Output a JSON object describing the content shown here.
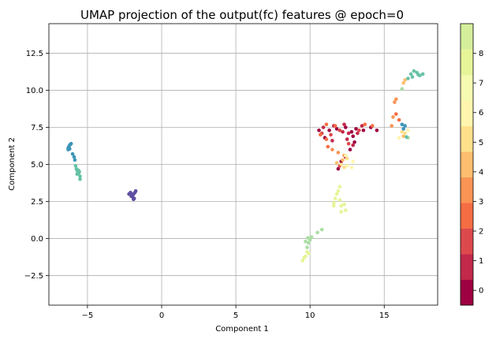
{
  "chart_data": {
    "type": "scatter",
    "title": "UMAP projection of the output(fc) features @ epoch=0",
    "xlabel": "Component 1",
    "ylabel": "Component 2",
    "xlim": [
      -7.6,
      18.6
    ],
    "ylim": [
      -4.5,
      14.5
    ],
    "xticks": [
      -5,
      0,
      5,
      10,
      15
    ],
    "xtick_labels": [
      "−5",
      "0",
      "5",
      "10",
      "15"
    ],
    "yticks": [
      -2.5,
      0.0,
      2.5,
      5.0,
      7.5,
      10.0,
      12.5
    ],
    "ytick_labels": [
      "−2.5",
      "0.0",
      "2.5",
      "5.0",
      "7.5",
      "10.0",
      "12.5"
    ],
    "grid": true,
    "colorbar": {
      "ticks": [
        0,
        1,
        2,
        3,
        4,
        5,
        6,
        7,
        8
      ],
      "tick_labels": [
        "0",
        "1",
        "2",
        "3",
        "4",
        "5",
        "6",
        "7",
        "8"
      ],
      "range": [
        -0.5,
        9.0
      ],
      "colors": [
        "#9e0142",
        "#c2294a",
        "#dc494c",
        "#f46d43",
        "#f99455",
        "#fdbe6f",
        "#fee08b",
        "#fff5ae",
        "#f6fbb2",
        "#e6f598",
        "#d5ee9b"
      ]
    },
    "colors": {
      "0": "#9e0142",
      "1": "#c2294a",
      "2": "#dc494c",
      "3": "#f46d43",
      "4": "#f99455",
      "5": "#fdbe6f",
      "6": "#fee08b",
      "7": "#fff5ae",
      "8": "#e6f598",
      "9": "#abdda4",
      "10": "#66c2a5",
      "11": "#3d95b8",
      "12": "#5e4fa2"
    },
    "points": [
      [
        -6.3,
        6.1,
        11
      ],
      [
        -6.25,
        6.2,
        11
      ],
      [
        -6.2,
        6.3,
        11
      ],
      [
        -6.15,
        6.35,
        11
      ],
      [
        -6.1,
        6.4,
        11
      ],
      [
        -6.3,
        6.0,
        11
      ],
      [
        -6.2,
        6.05,
        11
      ],
      [
        -6.0,
        5.7,
        11
      ],
      [
        -5.9,
        5.5,
        11
      ],
      [
        -5.85,
        5.3,
        11
      ],
      [
        -5.8,
        4.9,
        10
      ],
      [
        -5.75,
        4.7,
        10
      ],
      [
        -5.7,
        4.6,
        10
      ],
      [
        -5.65,
        4.5,
        10
      ],
      [
        -5.6,
        4.4,
        10
      ],
      [
        -5.55,
        4.5,
        10
      ],
      [
        -5.7,
        4.35,
        10
      ],
      [
        -5.6,
        4.6,
        10
      ],
      [
        -5.5,
        4.2,
        10
      ],
      [
        -5.5,
        4.0,
        10
      ],
      [
        -2.2,
        3.0,
        12
      ],
      [
        -2.1,
        3.1,
        12
      ],
      [
        -2.0,
        2.9,
        12
      ],
      [
        -1.95,
        2.8,
        12
      ],
      [
        -1.9,
        3.0,
        12
      ],
      [
        -1.85,
        2.7,
        12
      ],
      [
        -1.8,
        3.1,
        12
      ],
      [
        -1.75,
        3.2,
        12
      ],
      [
        -2.05,
        2.85,
        12
      ],
      [
        -1.9,
        2.65,
        12
      ],
      [
        10.6,
        7.3,
        0
      ],
      [
        11.3,
        7.3,
        0
      ],
      [
        11.8,
        7.4,
        0
      ],
      [
        12.4,
        7.5,
        0
      ],
      [
        12.8,
        7.2,
        0
      ],
      [
        13.1,
        7.4,
        0
      ],
      [
        13.6,
        7.3,
        0
      ],
      [
        14.1,
        7.5,
        0
      ],
      [
        14.5,
        7.3,
        0
      ],
      [
        12.9,
        6.9,
        0
      ],
      [
        13.0,
        6.5,
        0
      ],
      [
        12.7,
        6.0,
        0
      ],
      [
        12.4,
        5.5,
        0
      ],
      [
        12.1,
        5.2,
        0
      ],
      [
        11.9,
        4.7,
        0
      ],
      [
        11.0,
        6.8,
        0
      ],
      [
        10.9,
        7.5,
        1
      ],
      [
        11.6,
        7.6,
        1
      ],
      [
        12.2,
        7.2,
        1
      ],
      [
        12.6,
        7.1,
        1
      ],
      [
        13.2,
        7.1,
        1
      ],
      [
        13.5,
        7.6,
        1
      ],
      [
        12.9,
        6.3,
        1
      ],
      [
        12.5,
        6.7,
        1
      ],
      [
        11.5,
        6.6,
        1
      ],
      [
        12.3,
        7.7,
        1
      ],
      [
        10.8,
        7.1,
        2
      ],
      [
        11.4,
        7.0,
        2
      ],
      [
        12.0,
        7.3,
        2
      ],
      [
        13.3,
        7.3,
        2
      ],
      [
        12.6,
        6.4,
        2
      ],
      [
        12.0,
        4.9,
        2
      ],
      [
        10.7,
        7.0,
        3
      ],
      [
        11.1,
        6.7,
        3
      ],
      [
        11.2,
        6.2,
        3
      ],
      [
        11.1,
        7.7,
        3
      ],
      [
        11.7,
        7.6,
        3
      ],
      [
        13.7,
        7.7,
        3
      ],
      [
        14.2,
        7.6,
        3
      ],
      [
        15.8,
        8.4,
        3
      ],
      [
        16.0,
        8.0,
        3
      ],
      [
        11.5,
        6.0,
        4
      ],
      [
        11.9,
        5.8,
        4
      ],
      [
        12.3,
        5.6,
        4
      ],
      [
        15.5,
        7.6,
        4
      ],
      [
        15.6,
        8.2,
        4
      ],
      [
        15.7,
        9.2,
        4
      ],
      [
        15.8,
        9.4,
        4
      ],
      [
        12.2,
        5.3,
        5
      ],
      [
        11.8,
        5.1,
        5
      ],
      [
        16.3,
        10.5,
        5
      ],
      [
        16.4,
        10.7,
        5
      ],
      [
        16.3,
        6.9,
        5
      ],
      [
        12.1,
        5.0,
        6
      ],
      [
        12.3,
        4.8,
        6
      ],
      [
        12.5,
        5.4,
        6
      ],
      [
        16.2,
        7.2,
        6
      ],
      [
        16.4,
        7.1,
        6
      ],
      [
        12.5,
        4.9,
        7
      ],
      [
        12.8,
        4.8,
        7
      ],
      [
        12.4,
        5.6,
        7
      ],
      [
        12.9,
        5.2,
        7
      ],
      [
        16.0,
        6.8,
        7
      ],
      [
        16.6,
        7.3,
        7
      ],
      [
        11.8,
        3.0,
        8
      ],
      [
        11.7,
        2.7,
        8
      ],
      [
        11.6,
        2.4,
        8
      ],
      [
        12.0,
        2.6,
        8
      ],
      [
        12.1,
        2.2,
        8
      ],
      [
        12.3,
        2.3,
        8
      ],
      [
        12.1,
        1.8,
        8
      ],
      [
        12.4,
        1.9,
        8
      ],
      [
        12.0,
        3.5,
        8
      ],
      [
        11.9,
        3.2,
        8
      ],
      [
        11.6,
        2.2,
        8
      ],
      [
        9.8,
        -0.9,
        8
      ],
      [
        9.7,
        -1.2,
        8
      ],
      [
        9.5,
        -1.5,
        8
      ],
      [
        9.6,
        -1.3,
        8
      ],
      [
        9.9,
        -1.0,
        8
      ],
      [
        9.8,
        -0.6,
        9
      ],
      [
        9.9,
        -0.3,
        9
      ],
      [
        10.0,
        -0.1,
        9
      ],
      [
        9.7,
        -0.2,
        9
      ],
      [
        9.85,
        0.05,
        9
      ],
      [
        10.1,
        0.1,
        9
      ],
      [
        10.5,
        0.4,
        9
      ],
      [
        10.8,
        0.6,
        9
      ],
      [
        16.6,
        6.8,
        9
      ],
      [
        16.2,
        10.1,
        9
      ],
      [
        16.6,
        10.8,
        10
      ],
      [
        16.8,
        11.1,
        10
      ],
      [
        17.0,
        11.3,
        10
      ],
      [
        17.2,
        11.2,
        10
      ],
      [
        17.4,
        11.0,
        10
      ],
      [
        17.6,
        11.1,
        10
      ],
      [
        16.9,
        10.9,
        10
      ],
      [
        17.3,
        11.05,
        10
      ],
      [
        16.5,
        6.85,
        10
      ],
      [
        16.3,
        7.4,
        11
      ],
      [
        16.4,
        7.6,
        11
      ],
      [
        16.2,
        7.7,
        11
      ]
    ]
  }
}
